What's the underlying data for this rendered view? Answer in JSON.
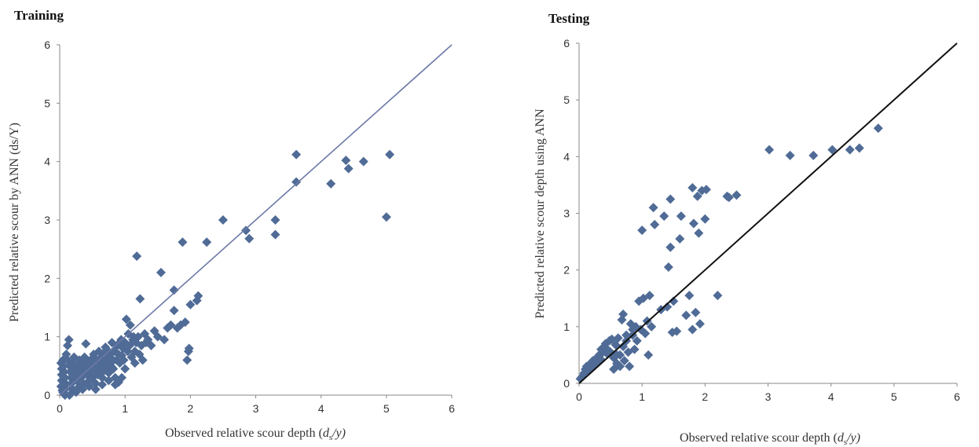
{
  "chart_data": [
    {
      "type": "scatter",
      "title": "Training",
      "xlabel": "Observed relative scour depth (ds/y)",
      "xlabel_main": "Observed relative scour depth (",
      "xlabel_var": "d",
      "xlabel_sub": "s",
      "xlabel_tail": "/y)",
      "ylabel": "Predicted relative scour by ANN (ds/Y)",
      "xlim": [
        0,
        6
      ],
      "ylim": [
        0,
        6
      ],
      "xticks": [
        "0",
        "1",
        "2",
        "3",
        "4",
        "5",
        "6"
      ],
      "yticks": [
        "0",
        "1",
        "2",
        "3",
        "4",
        "5",
        "6"
      ],
      "marker_color": "#4f6b96",
      "line_color": "#6d79a8",
      "reference_line": [
        [
          0,
          0
        ],
        [
          6,
          6
        ]
      ],
      "points": [
        [
          0.02,
          0.55
        ],
        [
          0.03,
          0.45
        ],
        [
          0.03,
          0.35
        ],
        [
          0.03,
          0.25
        ],
        [
          0.02,
          0.15
        ],
        [
          0.04,
          0.08
        ],
        [
          0.05,
          0.6
        ],
        [
          0.06,
          0.5
        ],
        [
          0.07,
          0.4
        ],
        [
          0.08,
          0.3
        ],
        [
          0.09,
          0.2
        ],
        [
          0.1,
          0.12
        ],
        [
          0.1,
          0.7
        ],
        [
          0.12,
          0.6
        ],
        [
          0.12,
          0.85
        ],
        [
          0.14,
          0.95
        ],
        [
          0.15,
          0.5
        ],
        [
          0.16,
          0.4
        ],
        [
          0.17,
          0.3
        ],
        [
          0.18,
          0.2
        ],
        [
          0.2,
          0.55
        ],
        [
          0.2,
          0.1
        ],
        [
          0.22,
          0.65
        ],
        [
          0.23,
          0.45
        ],
        [
          0.25,
          0.35
        ],
        [
          0.26,
          0.25
        ],
        [
          0.28,
          0.5
        ],
        [
          0.3,
          0.6
        ],
        [
          0.3,
          0.15
        ],
        [
          0.32,
          0.4
        ],
        [
          0.33,
          0.3
        ],
        [
          0.35,
          0.55
        ],
        [
          0.36,
          0.2
        ],
        [
          0.38,
          0.65
        ],
        [
          0.4,
          0.45
        ],
        [
          0.4,
          0.88
        ],
        [
          0.42,
          0.35
        ],
        [
          0.44,
          0.5
        ],
        [
          0.45,
          0.25
        ],
        [
          0.47,
          0.6
        ],
        [
          0.48,
          0.4
        ],
        [
          0.5,
          0.55
        ],
        [
          0.5,
          0.3
        ],
        [
          0.52,
          0.7
        ],
        [
          0.54,
          0.45
        ],
        [
          0.55,
          0.2
        ],
        [
          0.57,
          0.6
        ],
        [
          0.58,
          0.35
        ],
        [
          0.6,
          0.5
        ],
        [
          0.6,
          0.75
        ],
        [
          0.62,
          0.4
        ],
        [
          0.64,
          0.65
        ],
        [
          0.65,
          0.3
        ],
        [
          0.67,
          0.55
        ],
        [
          0.68,
          0.7
        ],
        [
          0.7,
          0.45
        ],
        [
          0.7,
          0.82
        ],
        [
          0.72,
          0.6
        ],
        [
          0.74,
          0.5
        ],
        [
          0.75,
          0.38
        ],
        [
          0.77,
          0.7
        ],
        [
          0.78,
          0.55
        ],
        [
          0.8,
          0.9
        ],
        [
          0.8,
          0.62
        ],
        [
          0.82,
          0.45
        ],
        [
          0.84,
          0.75
        ],
        [
          0.85,
          0.3
        ],
        [
          0.87,
          0.6
        ],
        [
          0.88,
          0.85
        ],
        [
          0.9,
          0.7
        ],
        [
          0.9,
          0.22
        ],
        [
          0.92,
          0.55
        ],
        [
          0.94,
          0.95
        ],
        [
          0.95,
          0.68
        ],
        [
          0.97,
          0.8
        ],
        [
          0.98,
          0.6
        ],
        [
          1.0,
          0.9
        ],
        [
          1.0,
          0.45
        ],
        [
          1.02,
          1.3
        ],
        [
          1.04,
          0.75
        ],
        [
          1.05,
          1.05
        ],
        [
          1.07,
          0.85
        ],
        [
          1.08,
          1.2
        ],
        [
          1.1,
          0.65
        ],
        [
          1.12,
          0.95
        ],
        [
          1.13,
          1.0
        ],
        [
          1.15,
          0.55
        ],
        [
          1.17,
          0.9
        ],
        [
          1.18,
          2.38
        ],
        [
          1.2,
          1.0
        ],
        [
          1.22,
          0.7
        ],
        [
          1.23,
          1.65
        ],
        [
          1.25,
          0.85
        ],
        [
          1.27,
          0.6
        ],
        [
          1.3,
          1.05
        ],
        [
          1.32,
          0.9
        ],
        [
          1.35,
          0.95
        ],
        [
          1.4,
          0.85
        ],
        [
          1.45,
          1.1
        ],
        [
          1.5,
          1.0
        ],
        [
          1.55,
          2.1
        ],
        [
          1.6,
          0.95
        ],
        [
          1.65,
          1.15
        ],
        [
          1.7,
          1.2
        ],
        [
          1.75,
          1.45
        ],
        [
          1.75,
          1.8
        ],
        [
          1.8,
          1.15
        ],
        [
          1.85,
          1.2
        ],
        [
          1.88,
          2.62
        ],
        [
          1.92,
          1.25
        ],
        [
          1.95,
          0.6
        ],
        [
          1.97,
          0.75
        ],
        [
          1.98,
          0.8
        ],
        [
          2.0,
          1.55
        ],
        [
          2.1,
          1.62
        ],
        [
          2.12,
          1.7
        ],
        [
          2.25,
          2.62
        ],
        [
          2.5,
          3.0
        ],
        [
          2.85,
          2.82
        ],
        [
          2.9,
          2.68
        ],
        [
          3.3,
          3.0
        ],
        [
          3.3,
          2.75
        ],
        [
          3.62,
          4.12
        ],
        [
          3.62,
          3.65
        ],
        [
          4.15,
          3.62
        ],
        [
          4.38,
          4.02
        ],
        [
          4.42,
          3.88
        ],
        [
          4.65,
          4.0
        ],
        [
          5.0,
          3.05
        ],
        [
          5.05,
          4.12
        ],
        [
          0.05,
          0.05
        ],
        [
          0.08,
          0.0
        ],
        [
          0.15,
          0.0
        ],
        [
          0.25,
          0.05
        ],
        [
          0.35,
          0.1
        ],
        [
          0.45,
          0.15
        ],
        [
          0.55,
          0.1
        ],
        [
          0.65,
          0.18
        ],
        [
          0.75,
          0.25
        ],
        [
          0.85,
          0.18
        ],
        [
          0.95,
          0.3
        ],
        [
          0.3,
          0.48
        ],
        [
          0.42,
          0.58
        ],
        [
          0.55,
          0.62
        ],
        [
          0.68,
          0.42
        ],
        [
          0.8,
          0.48
        ],
        [
          0.6,
          0.6
        ],
        [
          0.72,
          0.78
        ],
        [
          0.9,
          0.88
        ],
        [
          1.15,
          0.75
        ]
      ]
    },
    {
      "type": "scatter",
      "title": "Testing",
      "xlabel": "Observed relative scour depth (ds/y)",
      "xlabel_main": "Observed relative scour depth (",
      "xlabel_var": "d",
      "xlabel_sub": "s",
      "xlabel_tail": "/y)",
      "ylabel": "Predicted relative scour depth using ANN",
      "xlim": [
        0,
        6
      ],
      "ylim": [
        0,
        6
      ],
      "xticks": [
        "0",
        "1",
        "2",
        "3",
        "4",
        "5",
        "6"
      ],
      "yticks": [
        "0",
        "1",
        "2",
        "3",
        "4",
        "5",
        "6"
      ],
      "marker_color": "#4f6b96",
      "line_color": "#111111",
      "reference_line": [
        [
          0,
          0
        ],
        [
          6,
          6
        ]
      ],
      "points": [
        [
          0.02,
          0.08
        ],
        [
          0.05,
          0.12
        ],
        [
          0.08,
          0.18
        ],
        [
          0.1,
          0.25
        ],
        [
          0.12,
          0.3
        ],
        [
          0.15,
          0.22
        ],
        [
          0.18,
          0.35
        ],
        [
          0.2,
          0.28
        ],
        [
          0.22,
          0.4
        ],
        [
          0.25,
          0.32
        ],
        [
          0.28,
          0.45
        ],
        [
          0.3,
          0.38
        ],
        [
          0.32,
          0.5
        ],
        [
          0.35,
          0.42
        ],
        [
          0.38,
          0.55
        ],
        [
          0.4,
          0.65
        ],
        [
          0.42,
          0.7
        ],
        [
          0.45,
          0.6
        ],
        [
          0.48,
          0.75
        ],
        [
          0.5,
          0.55
        ],
        [
          0.52,
          0.78
        ],
        [
          0.55,
          0.45
        ],
        [
          0.55,
          0.25
        ],
        [
          0.58,
          0.68
        ],
        [
          0.6,
          0.35
        ],
        [
          0.62,
          0.8
        ],
        [
          0.65,
          0.5
        ],
        [
          0.65,
          0.3
        ],
        [
          0.68,
          1.12
        ],
        [
          0.7,
          0.65
        ],
        [
          0.7,
          1.22
        ],
        [
          0.72,
          0.4
        ],
        [
          0.75,
          0.75
        ],
        [
          0.78,
          0.55
        ],
        [
          0.8,
          0.3
        ],
        [
          0.82,
          1.05
        ],
        [
          0.85,
          0.85
        ],
        [
          0.88,
          0.6
        ],
        [
          0.9,
          1.0
        ],
        [
          0.92,
          0.75
        ],
        [
          0.95,
          1.45
        ],
        [
          0.98,
          0.95
        ],
        [
          1.0,
          2.7
        ],
        [
          1.02,
          1.5
        ],
        [
          1.05,
          0.88
        ],
        [
          1.08,
          1.1
        ],
        [
          1.1,
          0.5
        ],
        [
          1.12,
          1.55
        ],
        [
          1.15,
          1.0
        ],
        [
          1.18,
          3.1
        ],
        [
          1.2,
          2.8
        ],
        [
          1.3,
          1.3
        ],
        [
          1.35,
          2.95
        ],
        [
          1.4,
          1.35
        ],
        [
          1.42,
          2.05
        ],
        [
          1.45,
          2.4
        ],
        [
          1.45,
          3.25
        ],
        [
          1.48,
          0.9
        ],
        [
          1.5,
          1.45
        ],
        [
          1.55,
          0.92
        ],
        [
          1.6,
          2.55
        ],
        [
          1.62,
          2.95
        ],
        [
          1.75,
          1.55
        ],
        [
          1.8,
          3.45
        ],
        [
          1.82,
          2.82
        ],
        [
          1.85,
          1.25
        ],
        [
          1.88,
          3.3
        ],
        [
          1.9,
          2.65
        ],
        [
          1.92,
          1.05
        ],
        [
          1.95,
          3.4
        ],
        [
          2.0,
          2.9
        ],
        [
          2.02,
          3.42
        ],
        [
          2.2,
          1.55
        ],
        [
          2.35,
          3.3
        ],
        [
          2.38,
          3.28
        ],
        [
          2.5,
          3.32
        ],
        [
          3.02,
          4.12
        ],
        [
          3.35,
          4.02
        ],
        [
          3.72,
          4.02
        ],
        [
          4.02,
          4.12
        ],
        [
          4.3,
          4.12
        ],
        [
          4.45,
          4.15
        ],
        [
          4.75,
          4.5
        ],
        [
          1.8,
          0.95
        ],
        [
          1.7,
          1.2
        ],
        [
          0.6,
          0.5
        ],
        [
          0.75,
          0.85
        ],
        [
          0.85,
          0.95
        ],
        [
          0.45,
          0.52
        ],
        [
          0.35,
          0.6
        ]
      ]
    }
  ]
}
